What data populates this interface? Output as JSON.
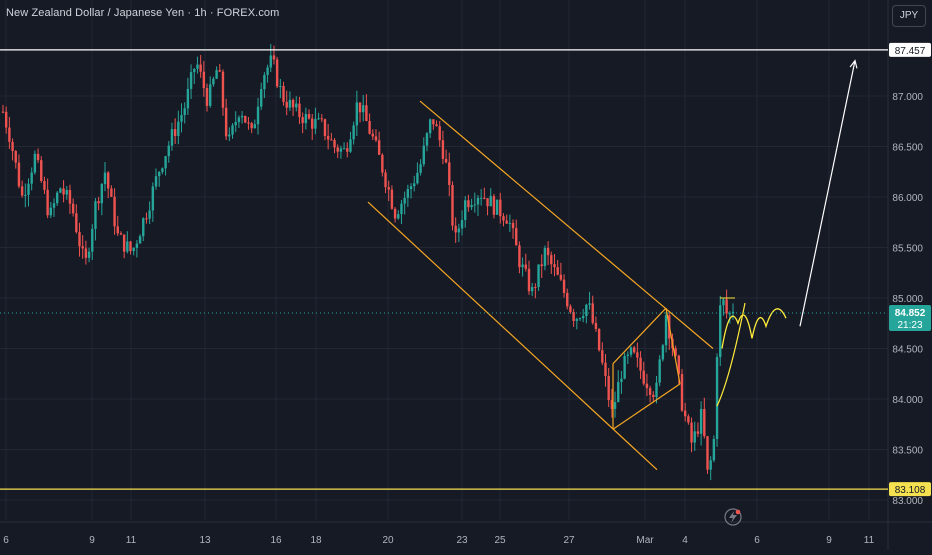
{
  "header": {
    "title": "New Zealand Dollar / Japanese Yen · 1h · FOREX.com",
    "currency_button": "JPY"
  },
  "colors": {
    "background": "#161a25",
    "grid": "#232733",
    "up": "#26a69a",
    "down": "#ef5350",
    "channel": "#f5a623",
    "projection": "#ffeb3b",
    "resistance": "#ffffff",
    "support": "#f5e050",
    "axis_text": "#b2b5be"
  },
  "icons": {
    "replay": "lightning-replay-icon"
  },
  "chart_data": {
    "type": "candlestick",
    "symbol": "NZDJPY",
    "timeframe": "1h",
    "title": "New Zealand Dollar / Japanese Yen · 1h · FOREX.com",
    "y_axis": {
      "ylim": [
        82.98,
        87.62
      ],
      "ticks": [
        83.0,
        83.5,
        84.0,
        84.5,
        85.0,
        85.5,
        86.0,
        86.5,
        87.0
      ],
      "tick_labels": [
        "83.000",
        "83.500",
        "84.000",
        "84.500",
        "85.000",
        "85.500",
        "86.000",
        "86.500",
        "87.000"
      ]
    },
    "x_axis": {
      "tick_labels": [
        "6",
        "9",
        "11",
        "13",
        "16",
        "18",
        "20",
        "23",
        "25",
        "27",
        "Mar",
        "4",
        "6",
        "9",
        "11"
      ],
      "tick_positions_index": [
        6,
        92,
        131,
        205,
        276,
        316,
        388,
        462,
        500,
        569,
        645,
        685,
        757,
        829,
        869
      ]
    },
    "price_path": [
      [
        0,
        86.95
      ],
      [
        10,
        86.6
      ],
      [
        22,
        86.0
      ],
      [
        35,
        86.4
      ],
      [
        50,
        85.8
      ],
      [
        60,
        86.1
      ],
      [
        72,
        85.9
      ],
      [
        85,
        85.3
      ],
      [
        95,
        85.9
      ],
      [
        105,
        86.25
      ],
      [
        118,
        85.6
      ],
      [
        132,
        85.45
      ],
      [
        148,
        85.9
      ],
      [
        160,
        86.3
      ],
      [
        172,
        86.6
      ],
      [
        185,
        86.9
      ],
      [
        196,
        87.35
      ],
      [
        208,
        86.95
      ],
      [
        218,
        87.3
      ],
      [
        228,
        86.5
      ],
      [
        240,
        86.9
      ],
      [
        252,
        86.6
      ],
      [
        262,
        87.2
      ],
      [
        272,
        87.35
      ],
      [
        282,
        87.0
      ],
      [
        295,
        86.85
      ],
      [
        310,
        86.75
      ],
      [
        322,
        86.7
      ],
      [
        334,
        86.5
      ],
      [
        345,
        86.45
      ],
      [
        358,
        86.95
      ],
      [
        372,
        86.6
      ],
      [
        382,
        86.3
      ],
      [
        395,
        85.85
      ],
      [
        408,
        86.05
      ],
      [
        420,
        86.3
      ],
      [
        432,
        86.8
      ],
      [
        445,
        86.4
      ],
      [
        455,
        85.55
      ],
      [
        465,
        85.95
      ],
      [
        480,
        86.05
      ],
      [
        495,
        85.9
      ],
      [
        508,
        85.8
      ],
      [
        520,
        85.35
      ],
      [
        532,
        85.05
      ],
      [
        545,
        85.45
      ],
      [
        560,
        85.15
      ],
      [
        575,
        84.8
      ],
      [
        588,
        84.95
      ],
      [
        600,
        84.45
      ],
      [
        612,
        83.85
      ],
      [
        622,
        84.3
      ],
      [
        632,
        84.45
      ],
      [
        645,
        84.2
      ],
      [
        656,
        84.05
      ],
      [
        666,
        84.85
      ],
      [
        675,
        84.4
      ],
      [
        683,
        83.9
      ],
      [
        692,
        83.55
      ],
      [
        702,
        83.85
      ],
      [
        708,
        83.2
      ],
      [
        714,
        83.6
      ],
      [
        718,
        84.75
      ],
      [
        722,
        85.0
      ],
      [
        728,
        84.8
      ],
      [
        733,
        84.9
      ]
    ],
    "candle_count": 230,
    "last_price": 84.852,
    "last_price_label": "84.852",
    "countdown": "21:23",
    "levels": [
      {
        "name": "resistance",
        "price": 87.457,
        "label": "87.457"
      },
      {
        "name": "support",
        "price": 83.108,
        "label": "83.108"
      }
    ],
    "annotations": {
      "descending_channel": {
        "upper": [
          [
            420,
            86.95
          ],
          [
            713,
            84.5
          ]
        ],
        "lower": [
          [
            368,
            85.95
          ],
          [
            657,
            83.3
          ]
        ]
      },
      "bear_flag": {
        "upper": [
          [
            613,
            84.35
          ],
          [
            666,
            84.9
          ]
        ],
        "lower": [
          [
            613,
            83.7
          ],
          [
            680,
            84.15
          ]
        ]
      },
      "projection_zigzag": [
        [
          722,
          84.5
        ],
        [
          738,
          84.75
        ],
        [
          752,
          84.6
        ],
        [
          766,
          84.72
        ],
        [
          786,
          84.8
        ]
      ],
      "breakout_arrow": [
        [
          800,
          84.72
        ],
        [
          855,
          87.35
        ]
      ]
    }
  }
}
